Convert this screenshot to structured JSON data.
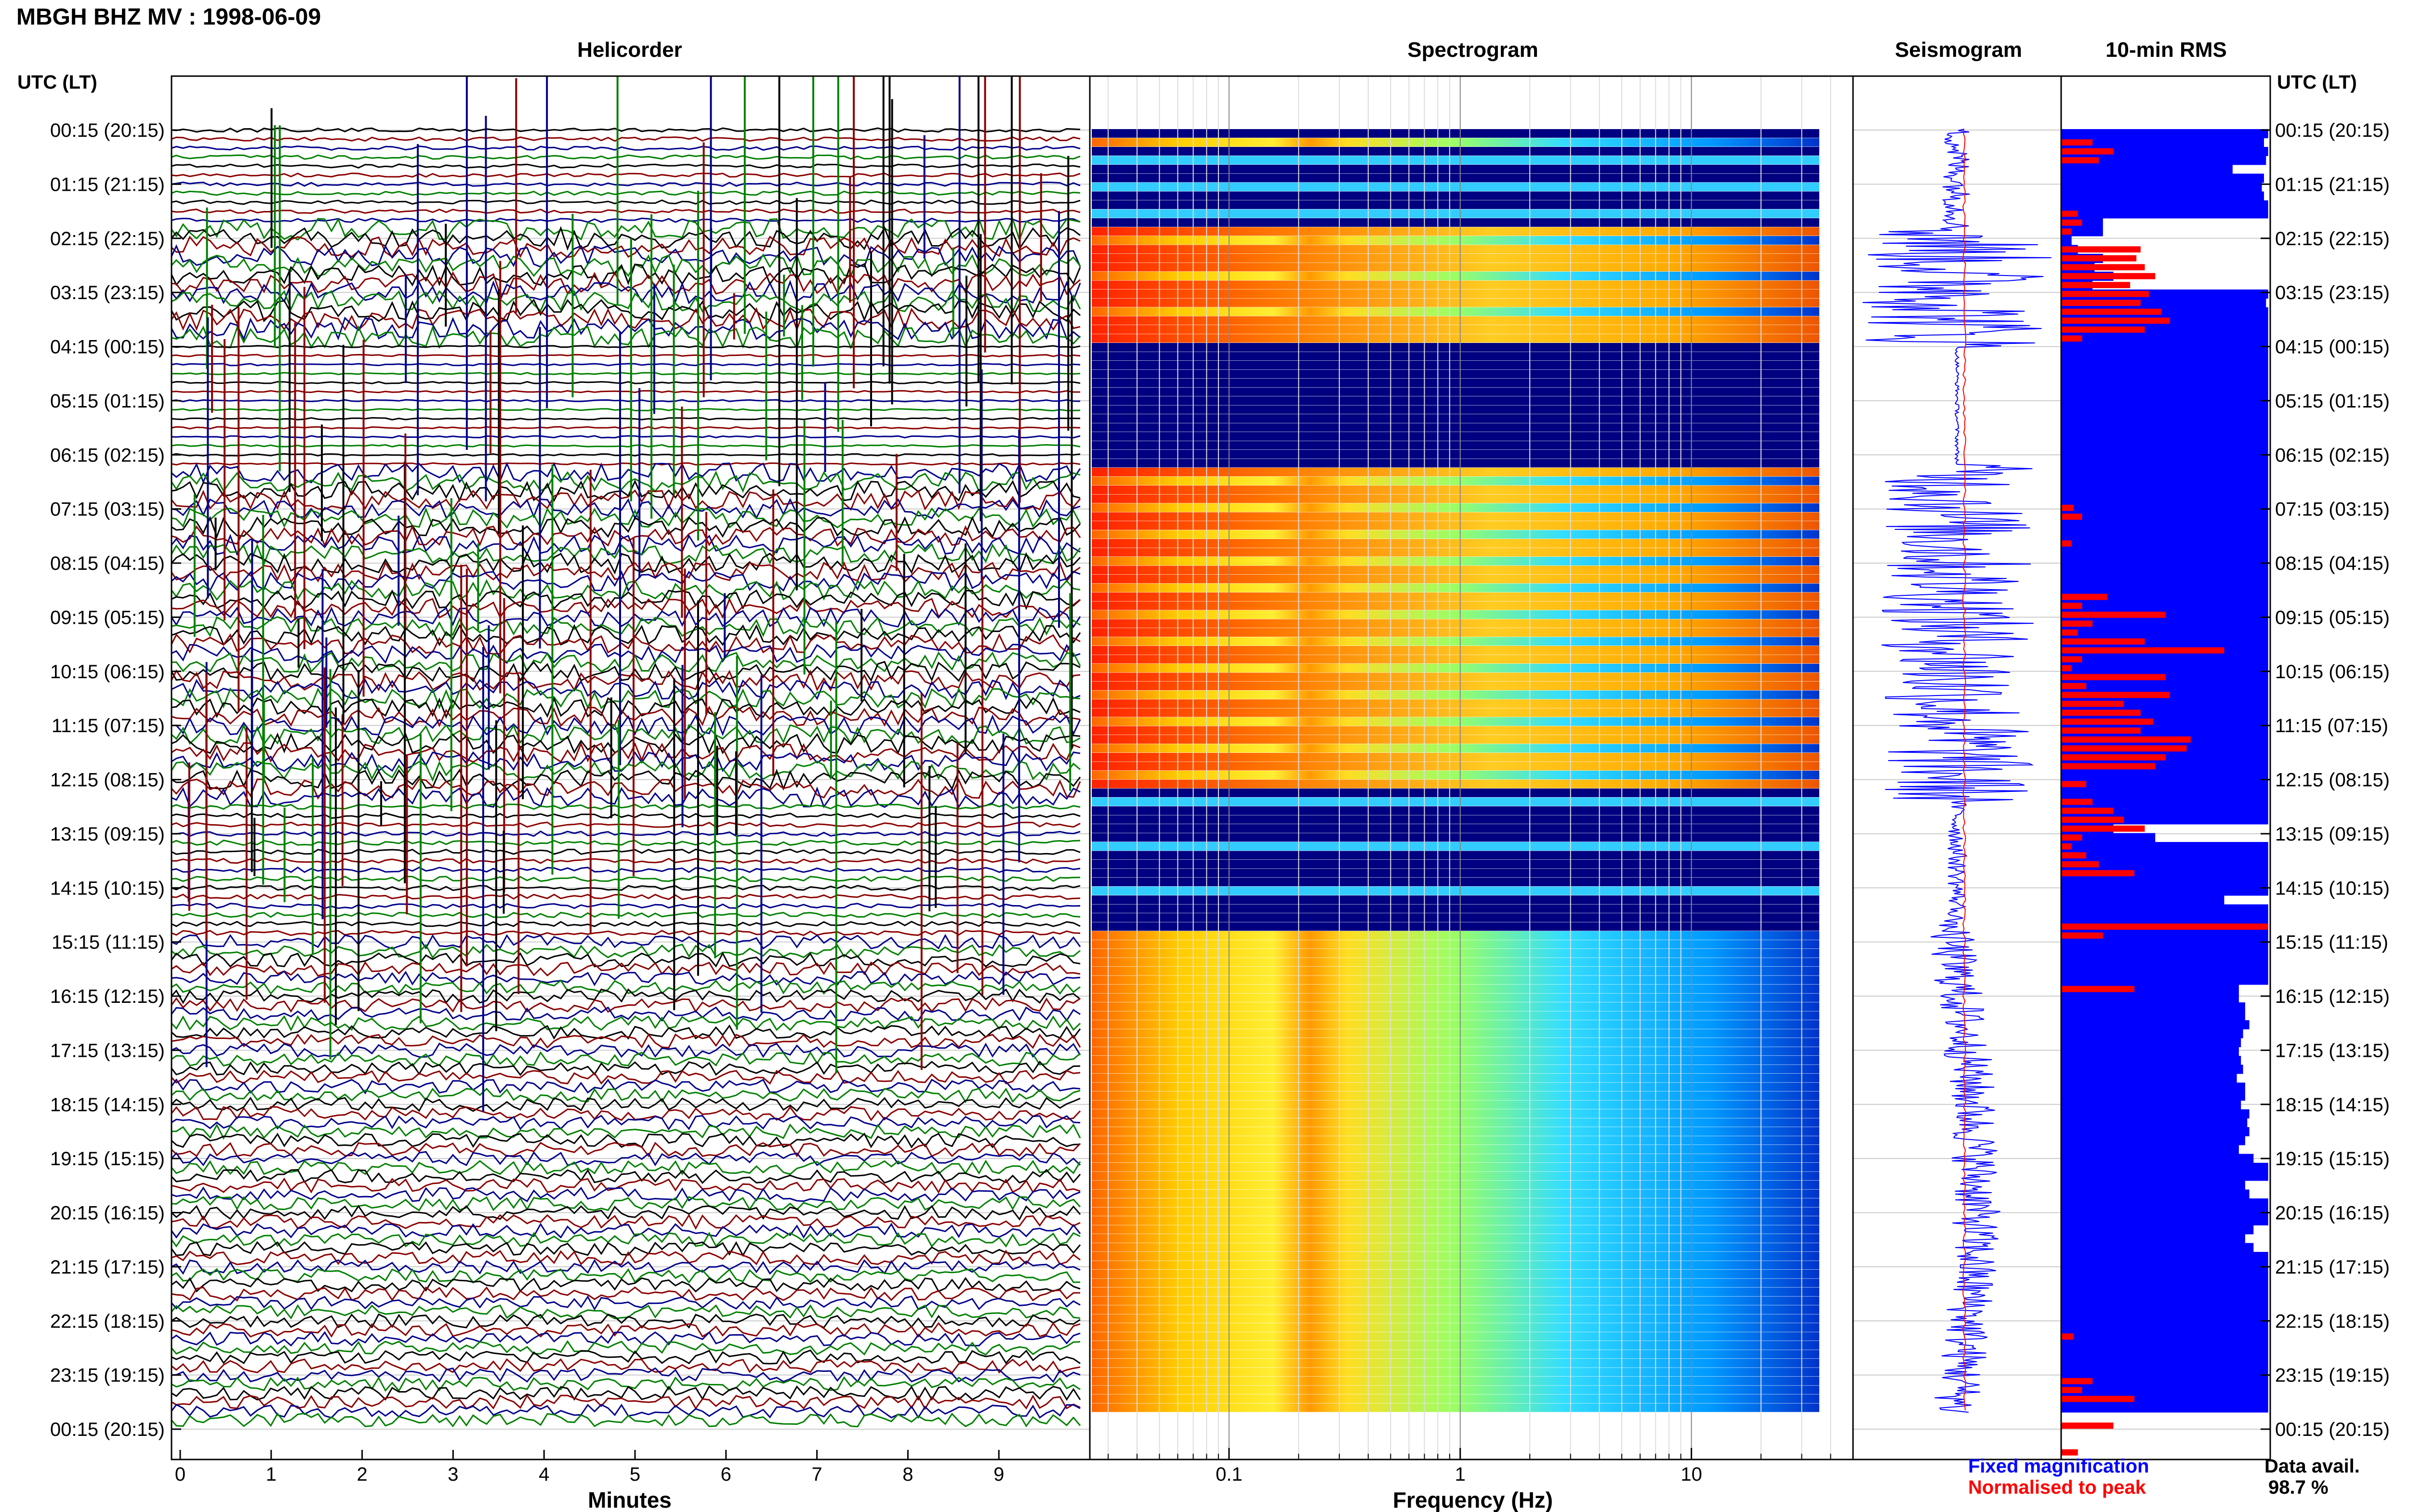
{
  "header": {
    "station_title": "MBGH BHZ MV : 1998-06-09"
  },
  "panels": {
    "helicorder_title": "Helicorder",
    "spectrogram_title": "Spectrogram",
    "seismogram_title": "Seismogram",
    "rms_title": "10-min RMS",
    "left_axis_header": "UTC (LT)",
    "right_axis_header": "UTC (LT)"
  },
  "footer": {
    "legend_fixed": "Fixed magnification",
    "legend_normalised": "Normalised to peak",
    "data_avail_label": "Data avail.",
    "data_avail_value": "98.7 %"
  },
  "colors": {
    "helicorder_traces": [
      "#000000",
      "#8b0000",
      "#00008b",
      "#008000"
    ],
    "fixed_magnification": "#0000ff",
    "normalised_to_peak": "#ff0000",
    "spectrogram_quiet": "#000080"
  },
  "chart_data": [
    {
      "type": "line",
      "title": "Helicorder",
      "xlabel": "Minutes",
      "ylabel": "UTC (LT)",
      "x_ticks": [
        "0",
        "1",
        "2",
        "3",
        "4",
        "5",
        "6",
        "7",
        "8",
        "9"
      ],
      "xlim": [
        0,
        10
      ],
      "y_ticks": [
        "00:15 (20:15)",
        "01:15 (21:15)",
        "02:15 (22:15)",
        "03:15 (23:15)",
        "04:15 (00:15)",
        "05:15 (01:15)",
        "06:15 (02:15)",
        "07:15 (03:15)",
        "08:15 (04:15)",
        "09:15 (05:15)",
        "10:15 (06:15)",
        "11:15 (07:15)",
        "12:15 (08:15)",
        "13:15 (09:15)",
        "14:15 (10:15)",
        "15:15 (11:15)",
        "16:15 (12:15)",
        "17:15 (13:15)",
        "18:15 (14:15)",
        "19:15 (15:15)",
        "20:15 (16:15)",
        "21:15 (17:15)",
        "22:15 (18:15)",
        "23:15 (19:15)",
        "00:15 (20:15)"
      ],
      "grid": true
    },
    {
      "type": "heatmap",
      "title": "Spectrogram",
      "xlabel": "Frequency (Hz)",
      "x_scale": "log",
      "x_ticks": [
        "0.1",
        "1",
        "10"
      ],
      "xlim": [
        0.025,
        50
      ]
    },
    {
      "type": "line",
      "title": "Seismogram",
      "series": [
        {
          "name": "Fixed magnification",
          "color": "#0000ff"
        },
        {
          "name": "Normalised to peak",
          "color": "#ff0000"
        }
      ]
    },
    {
      "type": "bar",
      "title": "10-min RMS",
      "data_availability": "98.7 %",
      "blue_levels": [
        0.99,
        0.97,
        0.99,
        0.98,
        0.82,
        0.97,
        0.96,
        0.97,
        0.99,
        0.99,
        0.2,
        0.2,
        0.05,
        0.08,
        0.2,
        0.16,
        0.25,
        0.15,
        0.99,
        0.98,
        0.99,
        0.99,
        0.99,
        0.99,
        0.99,
        0.99,
        0.99,
        0.99,
        0.99,
        0.99,
        0.99,
        0.99,
        0.99,
        0.99,
        0.99,
        0.99,
        0.99,
        0.99,
        0.99,
        0.99,
        0.99,
        0.99,
        0.99,
        0.99,
        0.99,
        0.99,
        0.99,
        0.99,
        0.99,
        0.99,
        0.99,
        0.99,
        0.99,
        0.99,
        0.99,
        0.99,
        0.99,
        0.99,
        0.99,
        0.99,
        0.99,
        0.99,
        0.99,
        0.99,
        0.99,
        0.99,
        0.99,
        0.99,
        0.99,
        0.99,
        0.99,
        0.99,
        0.99,
        0.99,
        0.99,
        0.99,
        0.99,
        0.99,
        0.25,
        0.45,
        0.99,
        0.99,
        0.99,
        0.99,
        0.99,
        0.99,
        0.78,
        0.99,
        0.99,
        0.99,
        0.99,
        0.99,
        0.99,
        0.99,
        0.99,
        0.99,
        0.85,
        0.85,
        0.88,
        0.88,
        0.9,
        0.87,
        0.86,
        0.85,
        0.86,
        0.87,
        0.84,
        0.88,
        0.88,
        0.86,
        0.9,
        0.89,
        0.9,
        0.88,
        0.85,
        0.92,
        0.99,
        0.99,
        0.88,
        0.9,
        0.99,
        0.99,
        0.99,
        0.92,
        0.88,
        0.92,
        0.99,
        0.99,
        0.99,
        0.99,
        0.99,
        0.99,
        0.99,
        0.99,
        0.99,
        0.99,
        0.99,
        0.99,
        0.99,
        0.99,
        0.99,
        0.99,
        0.99,
        0.99
      ],
      "red_levels": [
        0,
        0.15,
        0.25,
        0.18,
        0,
        0,
        0,
        0,
        0,
        0.08,
        0.1,
        0.05,
        0,
        0.38,
        0.36,
        0.4,
        0.45,
        0.33,
        0.42,
        0.38,
        0.48,
        0.52,
        0.4,
        0.1,
        0,
        0,
        0,
        0,
        0,
        0,
        0,
        0,
        0,
        0,
        0,
        0,
        0,
        0,
        0,
        0,
        0,
        0,
        0.06,
        0.1,
        0,
        0,
        0.05,
        0,
        0,
        0,
        0,
        0,
        0.22,
        0.1,
        0.5,
        0.15,
        0.08,
        0.4,
        0.78,
        0.1,
        0.05,
        0.5,
        0.12,
        0.52,
        0.3,
        0.38,
        0.44,
        0.38,
        0.62,
        0.6,
        0.5,
        0.45,
        0,
        0.12,
        0,
        0.15,
        0.25,
        0.3,
        0.4,
        0.1,
        0.05,
        0.12,
        0.18,
        0.35,
        0,
        0,
        0,
        0,
        0,
        0.99,
        0.2,
        0,
        0,
        0,
        0,
        0,
        0.35,
        0,
        0,
        0,
        0,
        0,
        0,
        0,
        0,
        0,
        0,
        0,
        0,
        0,
        0,
        0,
        0,
        0,
        0,
        0,
        0,
        0,
        0,
        0,
        0,
        0,
        0,
        0,
        0,
        0,
        0,
        0,
        0,
        0,
        0,
        0,
        0,
        0,
        0,
        0.06,
        0,
        0,
        0,
        0,
        0.15,
        0.1,
        0.35,
        0,
        0,
        0.25,
        0,
        0,
        0.08
      ]
    }
  ]
}
